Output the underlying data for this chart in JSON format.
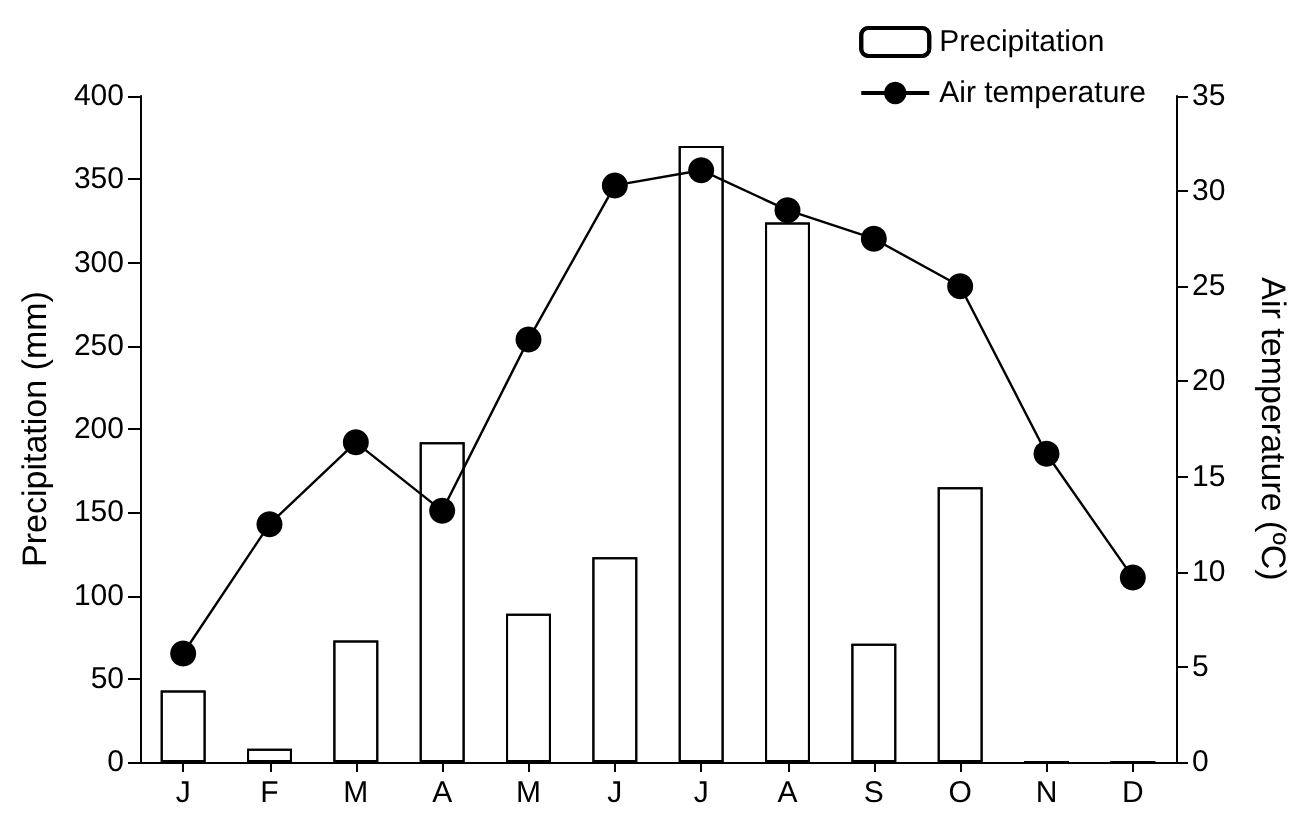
{
  "chart_data": {
    "type": "bar",
    "categories": [
      "J",
      "F",
      "M",
      "A",
      "M",
      "J",
      "J",
      "A",
      "S",
      "O",
      "N",
      "D"
    ],
    "ylabel": "Precipitation (mm)",
    "y2label": "Air temperature (ºC)",
    "series": [
      {
        "name": "Precipitation",
        "color": "#ffffff",
        "values": [
          43,
          8,
          73,
          192,
          89,
          123,
          370,
          324,
          71,
          165,
          0,
          0
        ]
      },
      {
        "name": "Air temperature",
        "type": "line",
        "axis": "y2",
        "color": "#000000",
        "values": [
          5.7,
          12.5,
          16.8,
          13.2,
          22.2,
          30.3,
          31.1,
          29.0,
          27.5,
          25.0,
          16.2,
          9.7
        ]
      }
    ],
    "ylim": [
      0,
      400
    ],
    "yticks": [
      0,
      50,
      100,
      150,
      200,
      250,
      300,
      350,
      400
    ],
    "y2lim": [
      0,
      35
    ],
    "y2ticks": [
      0,
      5,
      10,
      15,
      20,
      25,
      30,
      35
    ],
    "grid": false,
    "legend": "top right",
    "marker": "circle",
    "line_style": "solid"
  }
}
